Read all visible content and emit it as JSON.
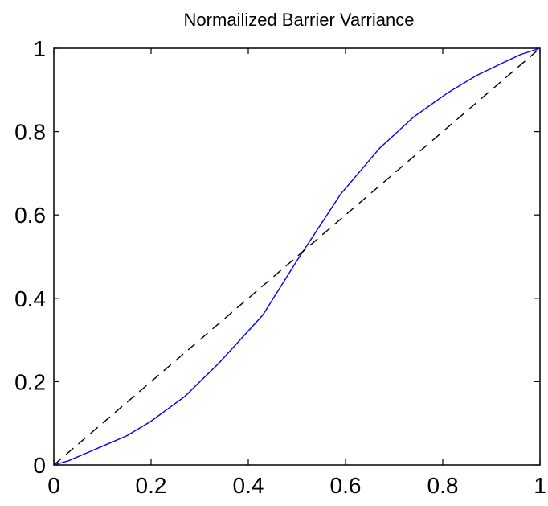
{
  "chart_data": {
    "type": "line",
    "title": "Normailized Barrier Varriance",
    "xlabel": "",
    "ylabel": "",
    "xlim": [
      0,
      1
    ],
    "ylim": [
      0,
      1
    ],
    "x_ticks": [
      "0",
      "0.2",
      "0.4",
      "0.6",
      "0.8",
      "1"
    ],
    "y_ticks": [
      "0",
      "0.2",
      "0.4",
      "0.6",
      "0.8",
      "1"
    ],
    "grid": false,
    "legend": "none",
    "series": [
      {
        "style": "solid",
        "color": "#0000ff",
        "x": [
          0,
          0.03,
          0.07,
          0.1,
          0.15,
          0.2,
          0.27,
          0.34,
          0.43,
          0.5,
          0.59,
          0.67,
          0.74,
          0.81,
          0.87,
          0.92,
          0.96,
          1
        ],
        "y": [
          0,
          0.01,
          0.03,
          0.045,
          0.07,
          0.105,
          0.165,
          0.245,
          0.36,
          0.49,
          0.65,
          0.76,
          0.835,
          0.893,
          0.935,
          0.963,
          0.985,
          1
        ]
      },
      {
        "style": "dashed",
        "color": "#000000",
        "x": [
          0,
          1
        ],
        "y": [
          0,
          1
        ]
      }
    ]
  }
}
